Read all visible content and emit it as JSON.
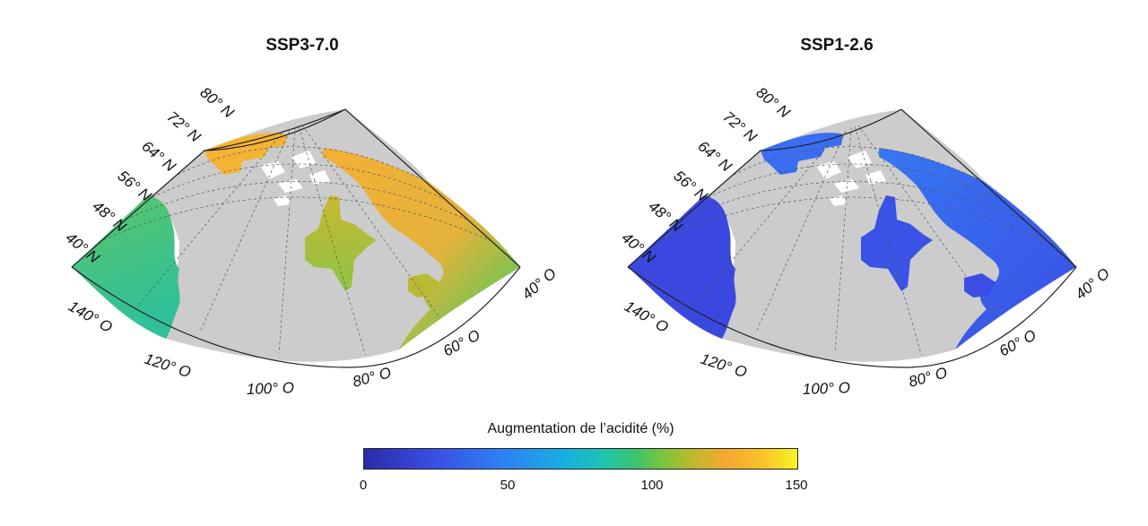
{
  "maps": [
    {
      "title": "SSP3-7.0"
    },
    {
      "title": "SSP1-2.6"
    }
  ],
  "lat_labels": [
    "80° N",
    "72° N",
    "64° N",
    "56° N",
    "48° N",
    "40° N"
  ],
  "lon_labels": [
    "140° O",
    "120° O",
    "100° O",
    "80° O",
    "60° O",
    "40° O"
  ],
  "colorbar": {
    "title": "Augmentation de l’acidité (%)",
    "ticks": [
      "0",
      "50",
      "100",
      "150"
    ],
    "range": [
      0,
      150
    ],
    "colors": [
      "#2c2aa8",
      "#3a4ee3",
      "#2f80f5",
      "#17aee0",
      "#1ec3b0",
      "#3ec56a",
      "#7bc63a",
      "#c0b82d",
      "#f6a82f",
      "#f8f521"
    ]
  },
  "colors": {
    "land": "#cccccc",
    "ssp370_pacific": "#4ec46e",
    "ssp370_arctic": "#f5b335",
    "ssp370_atlantic": "#6cc45b",
    "ssp126_pacific": "#3b48e0",
    "ssp126_arctic": "#3a6df2"
  }
}
